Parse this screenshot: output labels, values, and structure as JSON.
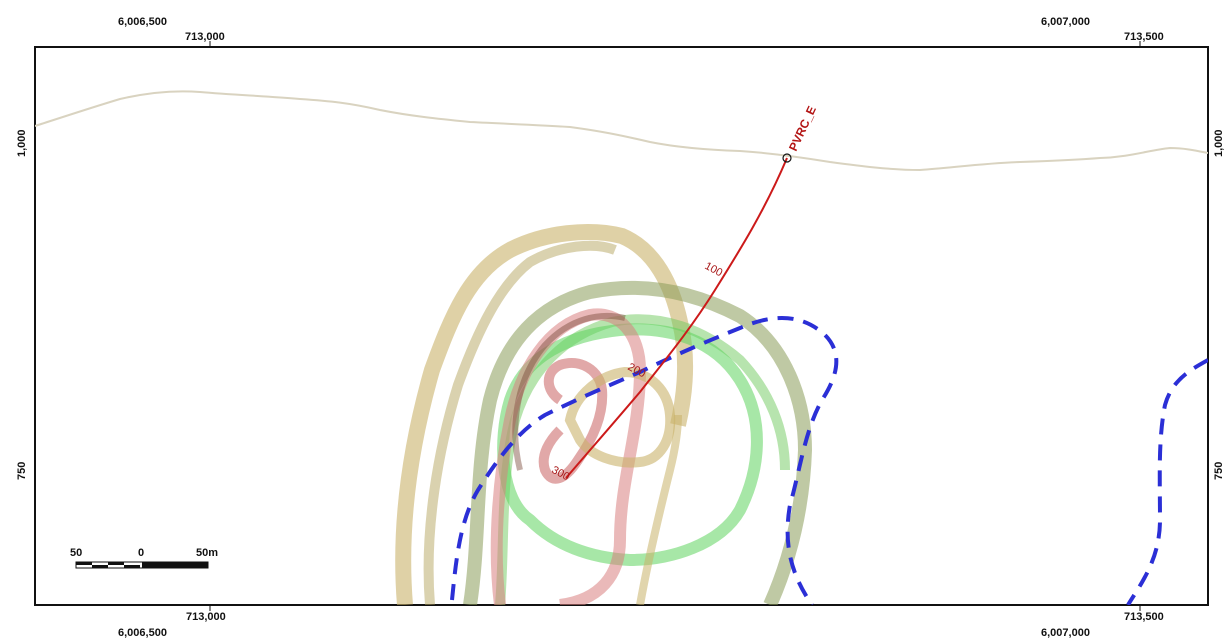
{
  "coords": {
    "top_northing_left": "6,006,500",
    "top_easting_left": "713,000",
    "top_northing_right": "6,007,000",
    "top_easting_right": "713,500",
    "bottom_easting_left": "713,000",
    "bottom_northing_left": "6,006,500",
    "bottom_easting_right": "713,500",
    "bottom_northing_right": "6,007,000",
    "left_elev_upper": "1,000",
    "left_elev_lower": "750",
    "right_elev_upper": "1,000",
    "right_elev_lower": "750"
  },
  "drillhole": {
    "name": "PVRC_E",
    "color": "#cc1a1a",
    "depth_labels": [
      "100",
      "200",
      "300"
    ]
  },
  "scale_bar": {
    "left_label": "50",
    "mid_label": "0",
    "right_label": "50m"
  },
  "colors": {
    "topography": "#d9d3c0",
    "dashed_boundary": "#2b2fd6",
    "shell_tan": "#c9b36a",
    "shell_green": "#5ed35e",
    "shell_red": "#d98080",
    "shell_olive": "#8a9c5a"
  }
}
